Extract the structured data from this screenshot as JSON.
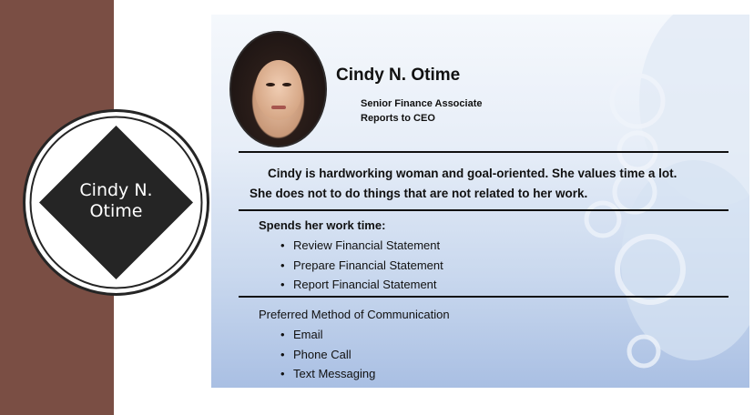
{
  "badge": {
    "name_line1": "Cindy N.",
    "name_line2": "Otime"
  },
  "profile": {
    "name": "Cindy N. Otime",
    "role": "Senior Finance Associate",
    "reports_to": "Reports to CEO"
  },
  "bio": {
    "line1": "Cindy is hardworking woman and goal-oriented. She values time a lot.",
    "line2": "She does not to do things that are not related to her work."
  },
  "work_time": {
    "title": "Spends her work time:",
    "items": [
      "Review Financial Statement",
      "Prepare Financial Statement",
      "Report Financial Statement"
    ]
  },
  "communication": {
    "title": "Preferred Method of Communication",
    "items": [
      "Email",
      "Phone Call",
      "Text Messaging"
    ]
  },
  "colors": {
    "band": "#7a4e44",
    "badge": "#252525",
    "slide_top": "#f5f8fc",
    "slide_bottom": "#a9bfe3"
  }
}
